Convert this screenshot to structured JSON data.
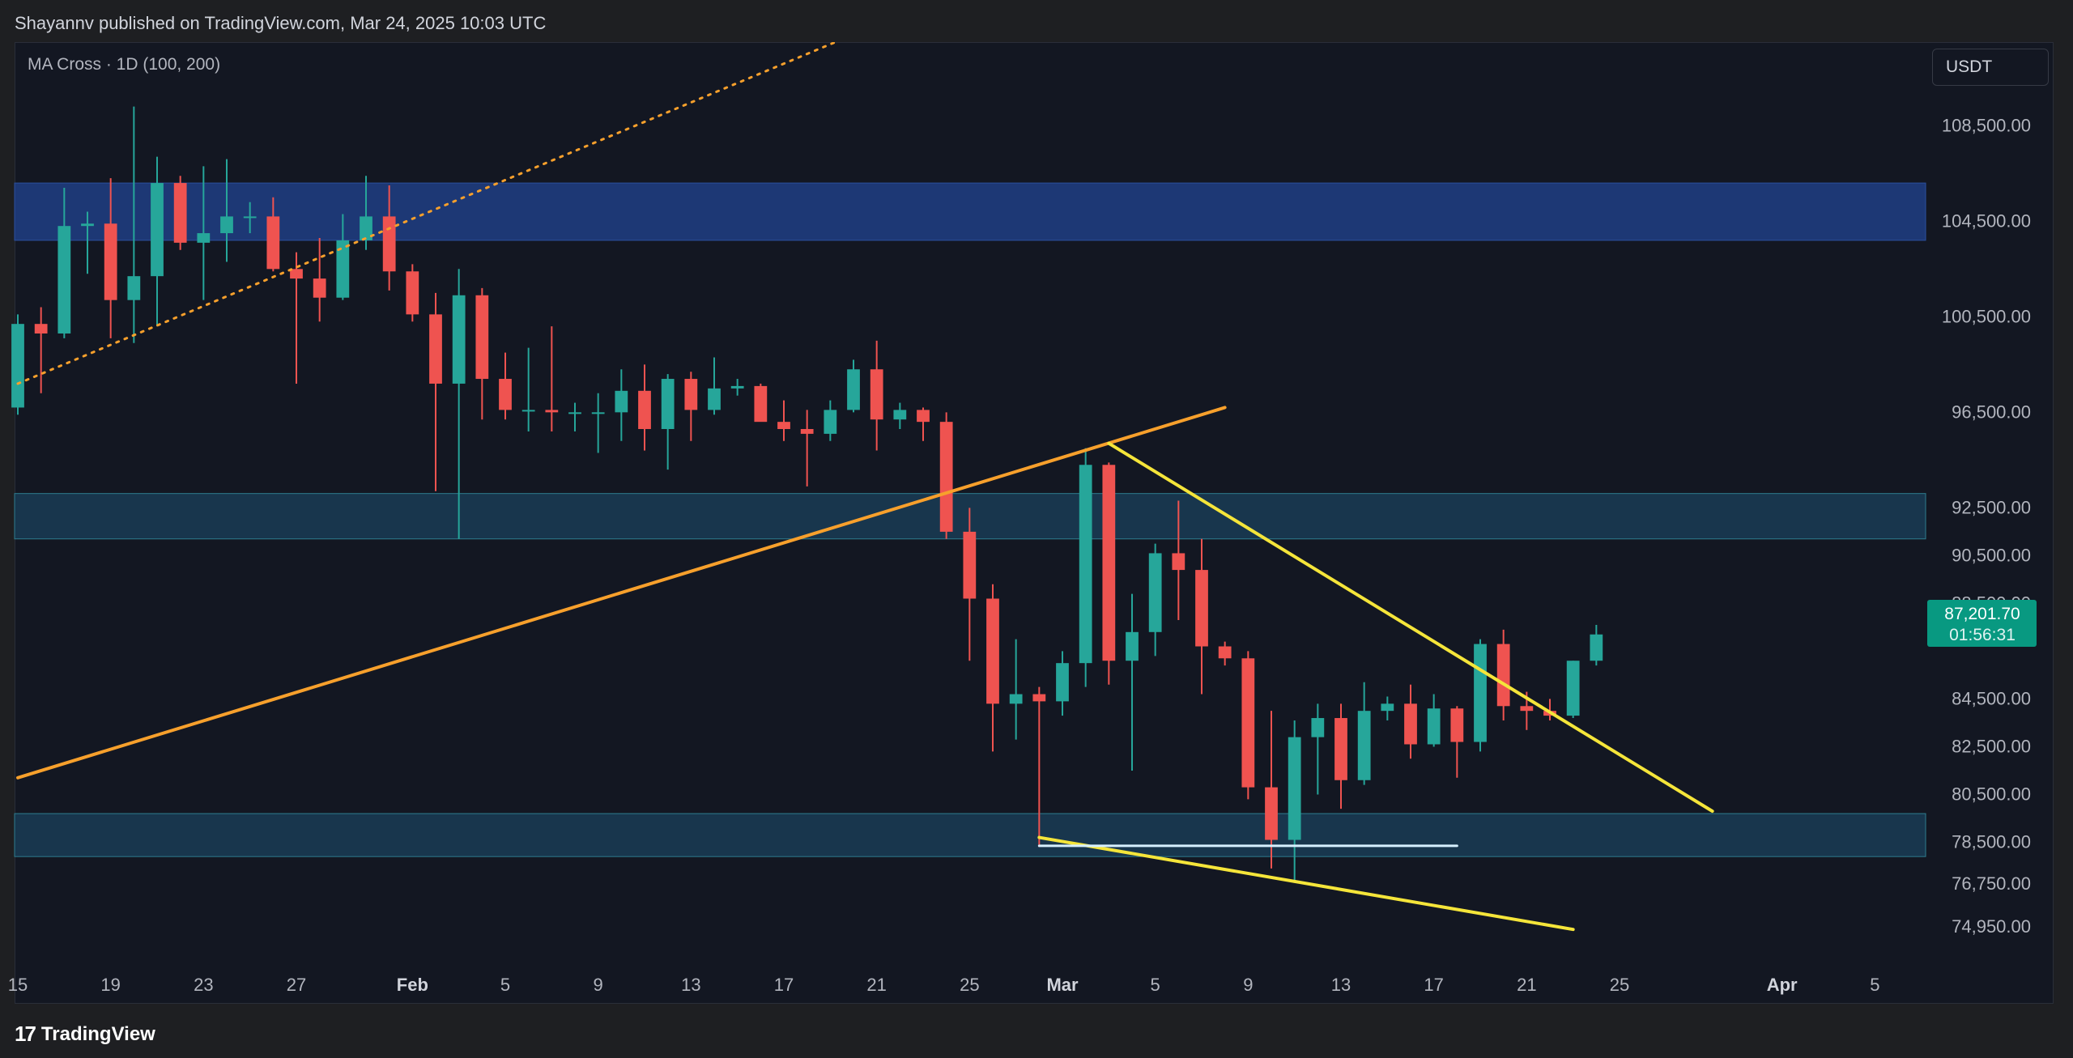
{
  "header": {
    "publish_text": "Shayannv published on TradingView.com, Mar 24, 2025 10:03 UTC"
  },
  "indicator_label": "MA Cross · 1D (100, 200)",
  "currency_button": "USDT",
  "footer": {
    "brand_mark": "17",
    "brand_name": "TradingView"
  },
  "current_price": {
    "price": "87,201.70",
    "countdown": "01:56:31",
    "color": "#089981"
  },
  "colors": {
    "background": "#131722",
    "bull": "#26a69a",
    "bear": "#ef5350",
    "supply_zone": "#1e3a7a",
    "support_zone": "#1a3a52",
    "trendline_orange": "#f7a02c",
    "wedge_yellow": "#f5e53a",
    "baseline_white": "#d6f0ff"
  },
  "chart_data": {
    "type": "candlestick",
    "symbol_timeframe": "1D",
    "ylim": [
      73500,
      112000
    ],
    "y_ticks": [
      "108,500.00",
      "104,500.00",
      "100,500.00",
      "96,500.00",
      "92,500.00",
      "90,500.00",
      "88,500.00",
      "84,500.00",
      "82,500.00",
      "80,500.00",
      "78,500.00",
      "76,750.00",
      "74,950.00"
    ],
    "x_ticks": [
      "15",
      "19",
      "23",
      "27",
      "Feb",
      "5",
      "9",
      "13",
      "17",
      "21",
      "25",
      "Mar",
      "5",
      "9",
      "13",
      "17",
      "21",
      "25",
      "Apr",
      "5"
    ],
    "x_range": [
      "2025-01-15",
      "2025-04-06"
    ],
    "zones": [
      {
        "name": "supply",
        "from": 103700,
        "to": 106100
      },
      {
        "name": "resistance",
        "from": 91200,
        "to": 93100
      },
      {
        "name": "support",
        "from": 77900,
        "to": 79700
      }
    ],
    "lines": [
      {
        "name": "ma-cross-dotted",
        "style": "dotted",
        "from": [
          "2025-01-15",
          97700
        ],
        "to": [
          "2025-03-06",
          118000
        ]
      },
      {
        "name": "ascending-trendline",
        "style": "solid",
        "from": [
          "2025-01-15",
          81200
        ],
        "to": [
          "2025-03-08",
          96700
        ]
      },
      {
        "name": "wedge-upper",
        "style": "solid",
        "from": [
          "2025-03-03",
          95200
        ],
        "to": [
          "2025-03-29",
          79800
        ]
      },
      {
        "name": "wedge-lower",
        "style": "solid",
        "from": [
          "2025-02-28",
          78700
        ],
        "to": [
          "2025-03-23",
          74850
        ]
      },
      {
        "name": "double-bottom-level",
        "style": "solid",
        "from": [
          "2025-02-28",
          78350
        ],
        "to": [
          "2025-03-18",
          78350
        ]
      }
    ],
    "candles": [
      {
        "d": "2025-01-15",
        "o": 96700,
        "h": 100600,
        "l": 96400,
        "c": 100200
      },
      {
        "d": "2025-01-16",
        "o": 100200,
        "h": 100900,
        "l": 97300,
        "c": 99800
      },
      {
        "d": "2025-01-17",
        "o": 99800,
        "h": 105900,
        "l": 99600,
        "c": 104300
      },
      {
        "d": "2025-01-18",
        "o": 104300,
        "h": 104900,
        "l": 102300,
        "c": 104400
      },
      {
        "d": "2025-01-19",
        "o": 104400,
        "h": 106300,
        "l": 99600,
        "c": 101200
      },
      {
        "d": "2025-01-20",
        "o": 101200,
        "h": 109300,
        "l": 99400,
        "c": 102200
      },
      {
        "d": "2025-01-21",
        "o": 102200,
        "h": 107200,
        "l": 100100,
        "c": 106100
      },
      {
        "d": "2025-01-22",
        "o": 106100,
        "h": 106400,
        "l": 103300,
        "c": 103600
      },
      {
        "d": "2025-01-23",
        "o": 103600,
        "h": 106800,
        "l": 101200,
        "c": 104000
      },
      {
        "d": "2025-01-24",
        "o": 104000,
        "h": 107100,
        "l": 102800,
        "c": 104700
      },
      {
        "d": "2025-01-25",
        "o": 104700,
        "h": 105300,
        "l": 104000,
        "c": 104700
      },
      {
        "d": "2025-01-26",
        "o": 104700,
        "h": 105500,
        "l": 102400,
        "c": 102500
      },
      {
        "d": "2025-01-27",
        "o": 102500,
        "h": 103200,
        "l": 97700,
        "c": 102100
      },
      {
        "d": "2025-01-28",
        "o": 102100,
        "h": 103800,
        "l": 100300,
        "c": 101300
      },
      {
        "d": "2025-01-29",
        "o": 101300,
        "h": 104800,
        "l": 101200,
        "c": 103700
      },
      {
        "d": "2025-01-30",
        "o": 103700,
        "h": 106400,
        "l": 103300,
        "c": 104700
      },
      {
        "d": "2025-01-31",
        "o": 104700,
        "h": 106000,
        "l": 101600,
        "c": 102400
      },
      {
        "d": "2025-02-01",
        "o": 102400,
        "h": 102700,
        "l": 100300,
        "c": 100600
      },
      {
        "d": "2025-02-02",
        "o": 100600,
        "h": 101500,
        "l": 93200,
        "c": 97700
      },
      {
        "d": "2025-02-03",
        "o": 97700,
        "h": 102500,
        "l": 91200,
        "c": 101400
      },
      {
        "d": "2025-02-04",
        "o": 101400,
        "h": 101700,
        "l": 96200,
        "c": 97900
      },
      {
        "d": "2025-02-05",
        "o": 97900,
        "h": 99000,
        "l": 96200,
        "c": 96600
      },
      {
        "d": "2025-02-06",
        "o": 96600,
        "h": 99200,
        "l": 95700,
        "c": 96600
      },
      {
        "d": "2025-02-07",
        "o": 96600,
        "h": 100100,
        "l": 95700,
        "c": 96500
      },
      {
        "d": "2025-02-08",
        "o": 96500,
        "h": 96900,
        "l": 95700,
        "c": 96500
      },
      {
        "d": "2025-02-09",
        "o": 96500,
        "h": 97300,
        "l": 94800,
        "c": 96500
      },
      {
        "d": "2025-02-10",
        "o": 96500,
        "h": 98300,
        "l": 95300,
        "c": 97400
      },
      {
        "d": "2025-02-11",
        "o": 97400,
        "h": 98500,
        "l": 94900,
        "c": 95800
      },
      {
        "d": "2025-02-12",
        "o": 95800,
        "h": 98100,
        "l": 94100,
        "c": 97900
      },
      {
        "d": "2025-02-13",
        "o": 97900,
        "h": 98200,
        "l": 95300,
        "c": 96600
      },
      {
        "d": "2025-02-14",
        "o": 96600,
        "h": 98800,
        "l": 96400,
        "c": 97500
      },
      {
        "d": "2025-02-15",
        "o": 97500,
        "h": 97900,
        "l": 97200,
        "c": 97600
      },
      {
        "d": "2025-02-16",
        "o": 97600,
        "h": 97700,
        "l": 96200,
        "c": 96100
      },
      {
        "d": "2025-02-17",
        "o": 96100,
        "h": 97000,
        "l": 95300,
        "c": 95800
      },
      {
        "d": "2025-02-18",
        "o": 95800,
        "h": 96600,
        "l": 93400,
        "c": 95600
      },
      {
        "d": "2025-02-19",
        "o": 95600,
        "h": 97000,
        "l": 95300,
        "c": 96600
      },
      {
        "d": "2025-02-20",
        "o": 96600,
        "h": 98700,
        "l": 96500,
        "c": 98300
      },
      {
        "d": "2025-02-21",
        "o": 98300,
        "h": 99500,
        "l": 94900,
        "c": 96200
      },
      {
        "d": "2025-02-22",
        "o": 96200,
        "h": 96900,
        "l": 95800,
        "c": 96600
      },
      {
        "d": "2025-02-23",
        "o": 96600,
        "h": 96700,
        "l": 95300,
        "c": 96100
      },
      {
        "d": "2025-02-24",
        "o": 96100,
        "h": 96500,
        "l": 91200,
        "c": 91500
      },
      {
        "d": "2025-02-25",
        "o": 91500,
        "h": 92500,
        "l": 86100,
        "c": 88700
      },
      {
        "d": "2025-02-26",
        "o": 88700,
        "h": 89300,
        "l": 82300,
        "c": 84300
      },
      {
        "d": "2025-02-27",
        "o": 84300,
        "h": 87000,
        "l": 82800,
        "c": 84700
      },
      {
        "d": "2025-02-28",
        "o": 84700,
        "h": 85000,
        "l": 78300,
        "c": 84400
      },
      {
        "d": "2025-03-01",
        "o": 84400,
        "h": 86500,
        "l": 83800,
        "c": 86000
      },
      {
        "d": "2025-03-02",
        "o": 86000,
        "h": 95000,
        "l": 85000,
        "c": 94300
      },
      {
        "d": "2025-03-03",
        "o": 94300,
        "h": 94400,
        "l": 85100,
        "c": 86100
      },
      {
        "d": "2025-03-04",
        "o": 86100,
        "h": 88900,
        "l": 81500,
        "c": 87300
      },
      {
        "d": "2025-03-05",
        "o": 87300,
        "h": 91000,
        "l": 86300,
        "c": 90600
      },
      {
        "d": "2025-03-06",
        "o": 90600,
        "h": 92800,
        "l": 87800,
        "c": 89900
      },
      {
        "d": "2025-03-07",
        "o": 89900,
        "h": 91200,
        "l": 84700,
        "c": 86700
      },
      {
        "d": "2025-03-08",
        "o": 86700,
        "h": 86900,
        "l": 85900,
        "c": 86200
      },
      {
        "d": "2025-03-09",
        "o": 86200,
        "h": 86500,
        "l": 80300,
        "c": 80800
      },
      {
        "d": "2025-03-10",
        "o": 80800,
        "h": 84000,
        "l": 77400,
        "c": 78600
      },
      {
        "d": "2025-03-11",
        "o": 78600,
        "h": 83600,
        "l": 76800,
        "c": 82900
      },
      {
        "d": "2025-03-12",
        "o": 82900,
        "h": 84300,
        "l": 80500,
        "c": 83700
      },
      {
        "d": "2025-03-13",
        "o": 83700,
        "h": 84300,
        "l": 79900,
        "c": 81100
      },
      {
        "d": "2025-03-14",
        "o": 81100,
        "h": 85200,
        "l": 80900,
        "c": 84000
      },
      {
        "d": "2025-03-15",
        "o": 84000,
        "h": 84600,
        "l": 83600,
        "c": 84300
      },
      {
        "d": "2025-03-16",
        "o": 84300,
        "h": 85100,
        "l": 82000,
        "c": 82600
      },
      {
        "d": "2025-03-17",
        "o": 82600,
        "h": 84700,
        "l": 82500,
        "c": 84100
      },
      {
        "d": "2025-03-18",
        "o": 84100,
        "h": 84200,
        "l": 81200,
        "c": 82700
      },
      {
        "d": "2025-03-19",
        "o": 82700,
        "h": 87000,
        "l": 82300,
        "c": 86800
      },
      {
        "d": "2025-03-20",
        "o": 86800,
        "h": 87400,
        "l": 83600,
        "c": 84200
      },
      {
        "d": "2025-03-21",
        "o": 84200,
        "h": 84800,
        "l": 83200,
        "c": 84000
      },
      {
        "d": "2025-03-22",
        "o": 84000,
        "h": 84500,
        "l": 83600,
        "c": 83800
      },
      {
        "d": "2025-03-23",
        "o": 83800,
        "h": 86100,
        "l": 83700,
        "c": 86100
      },
      {
        "d": "2025-03-24",
        "o": 86100,
        "h": 87600,
        "l": 85900,
        "c": 87200
      }
    ]
  }
}
